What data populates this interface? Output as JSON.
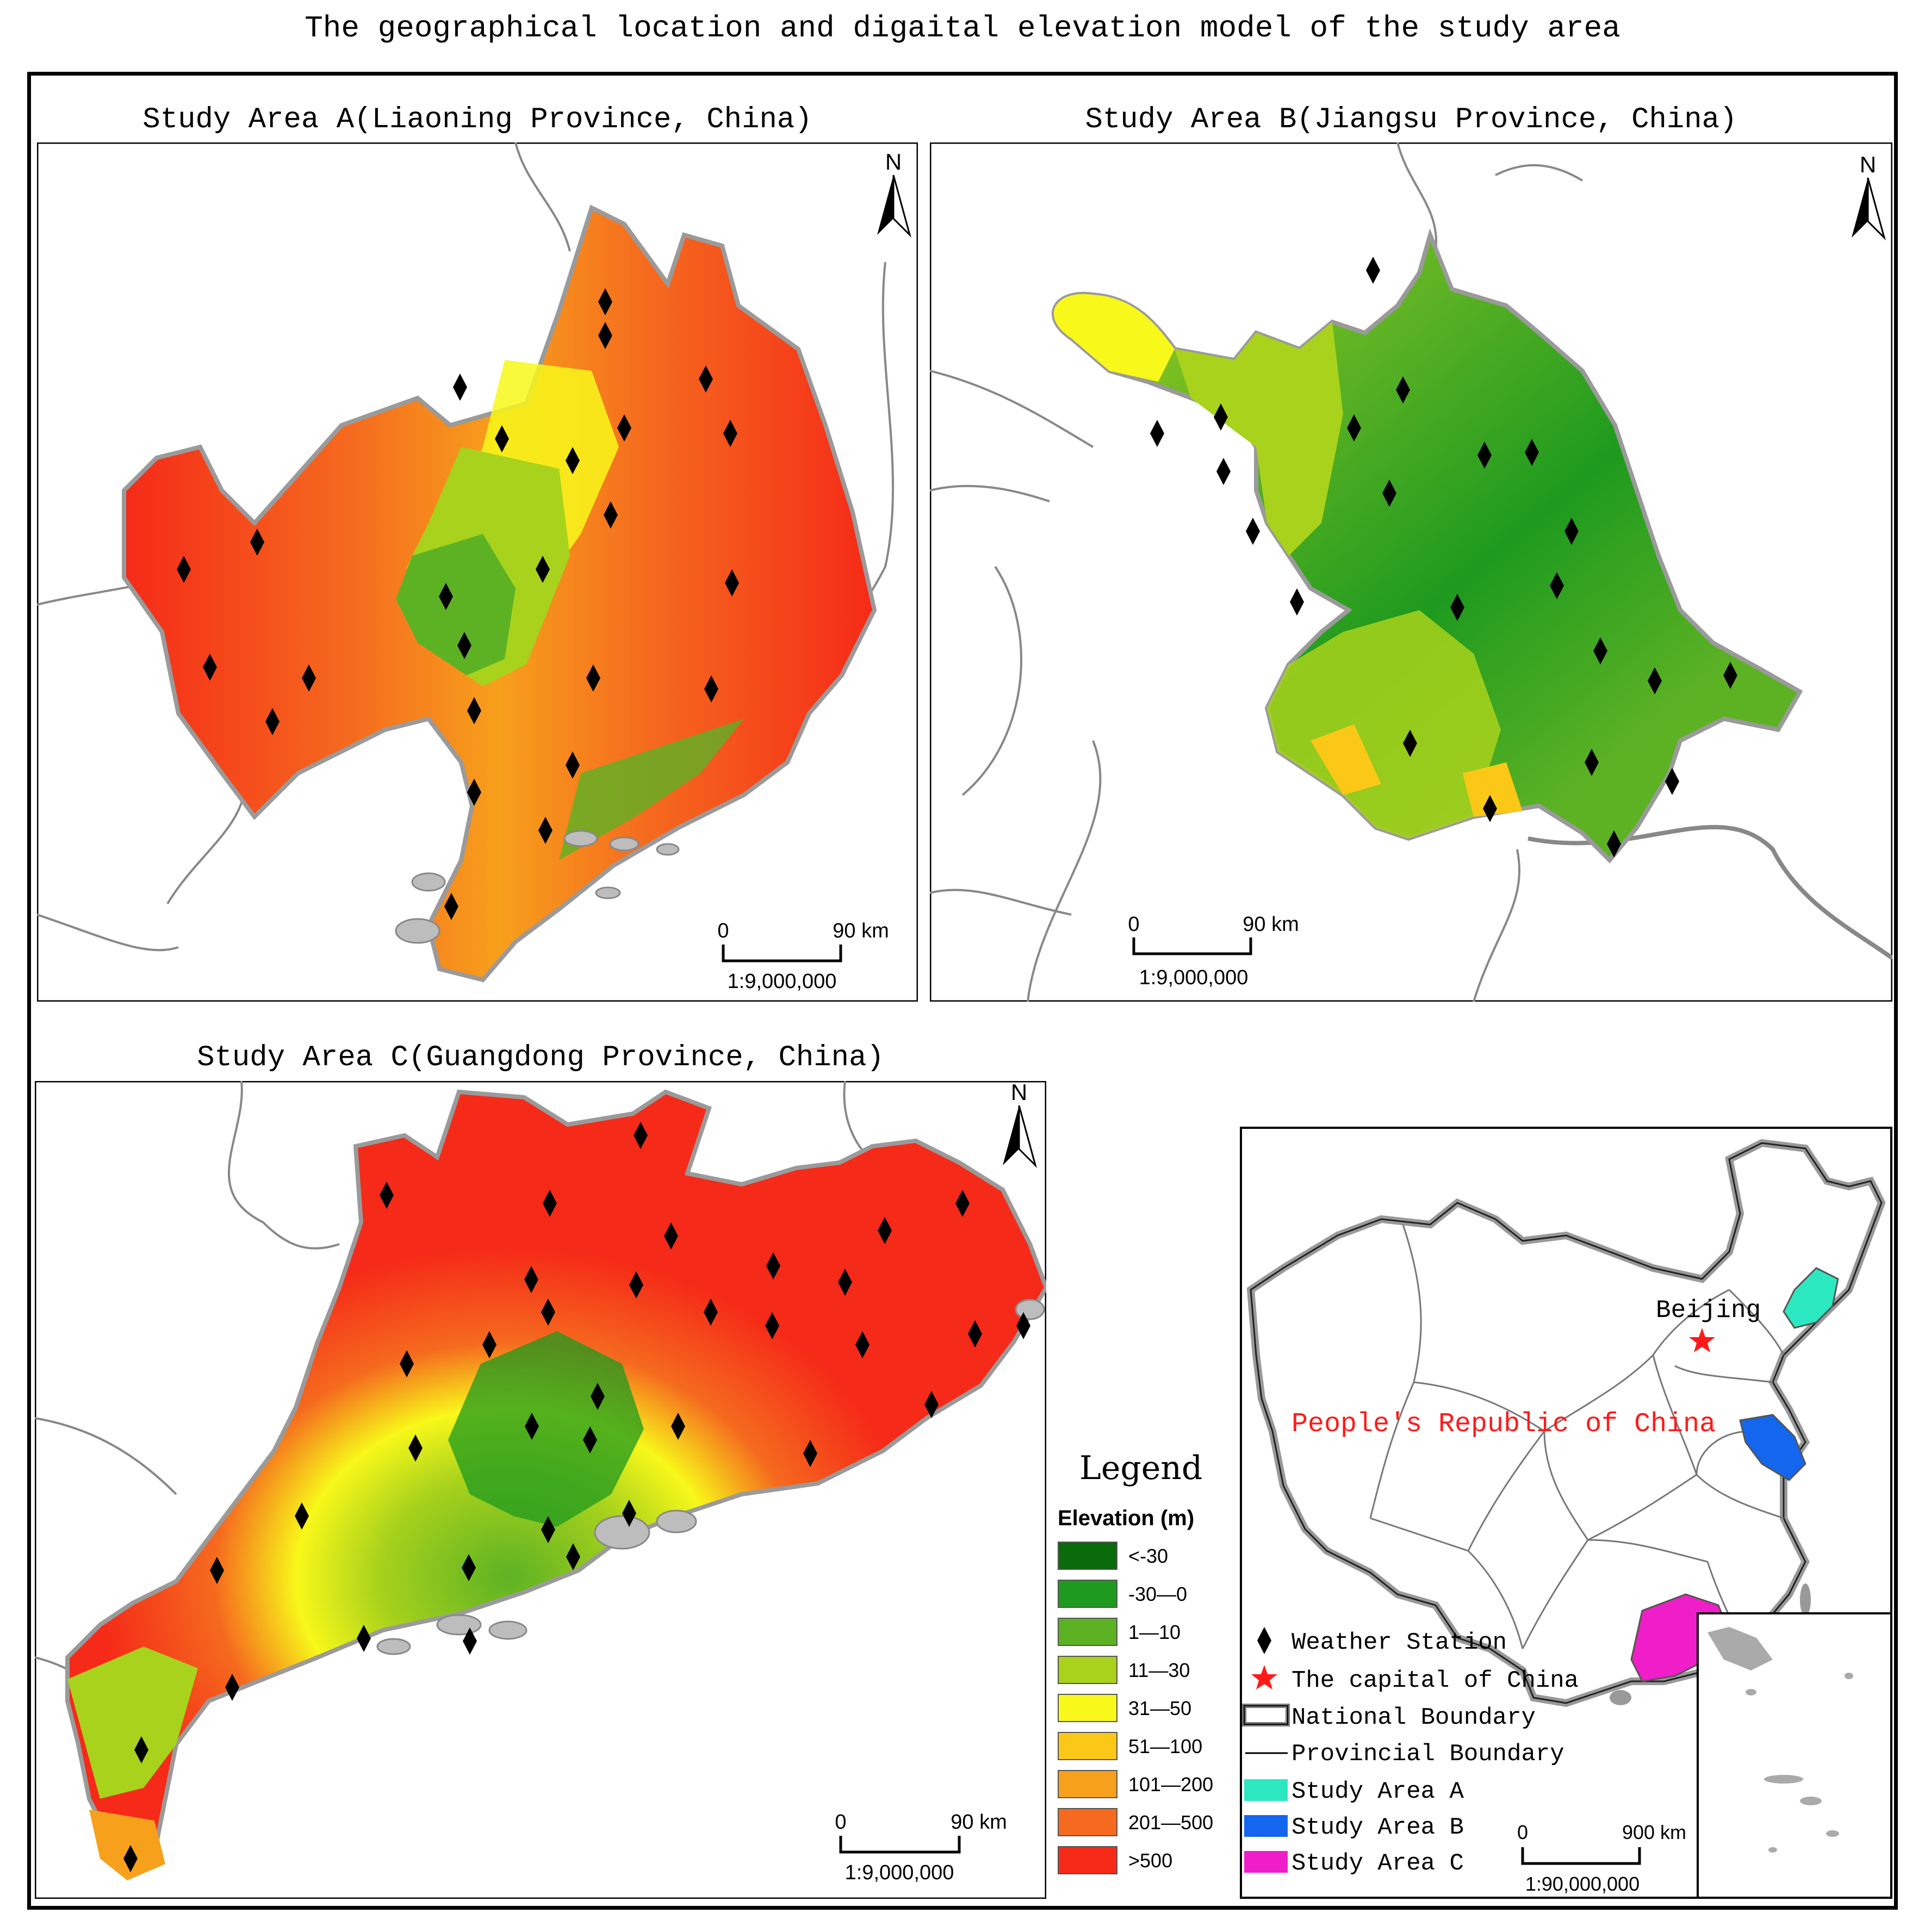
{
  "title": "The geographical location and digaital elevation model of the study area",
  "panels": {
    "a": {
      "title": "Study Area A(Liaoning Province, China)",
      "north": "N",
      "scale": {
        "zero": "0",
        "dist": "90 km",
        "ratio": "1:9,000,000"
      }
    },
    "b": {
      "title": "Study Area B(Jiangsu Province, China)",
      "north": "N",
      "scale": {
        "zero": "0",
        "dist": "90 km",
        "ratio": "1:9,000,000"
      }
    },
    "c": {
      "title": "Study Area C(Guangdong Province, China)",
      "north": "N",
      "scale": {
        "zero": "0",
        "dist": "90 km",
        "ratio": "1:9,000,000"
      }
    }
  },
  "legend": {
    "title": "Legend",
    "subtitle": "Elevation (m)",
    "classes": [
      {
        "label": "<-30",
        "color": "#0a6b0a"
      },
      {
        "label": "-30—0",
        "color": "#1e9a1e"
      },
      {
        "label": "1—10",
        "color": "#5db224"
      },
      {
        "label": "11—30",
        "color": "#a8d21c"
      },
      {
        "label": "31—50",
        "color": "#f8f81a"
      },
      {
        "label": "51—100",
        "color": "#fcc818"
      },
      {
        "label": "101—200",
        "color": "#f7a01c"
      },
      {
        "label": "201—500",
        "color": "#f56a1e"
      },
      {
        "label": ">500",
        "color": "#f52a18"
      }
    ]
  },
  "overview": {
    "country_label": "People's Republic of China",
    "capital_label": "Beijing",
    "scale": {
      "zero": "0",
      "dist": "900 km",
      "ratio": "1:90,000,000"
    },
    "legend": {
      "station": "Weather Station",
      "capital": "The capital of China",
      "national": "National Boundary",
      "provincial": "Provincial Boundary",
      "area_a": "Study Area A",
      "area_b": "Study Area B",
      "area_c": "Study Area C"
    },
    "colors": {
      "area_a": "#2ce8c0",
      "area_b": "#1466ee",
      "area_c": "#f01ec8",
      "capital": "#ff1a1a"
    }
  }
}
